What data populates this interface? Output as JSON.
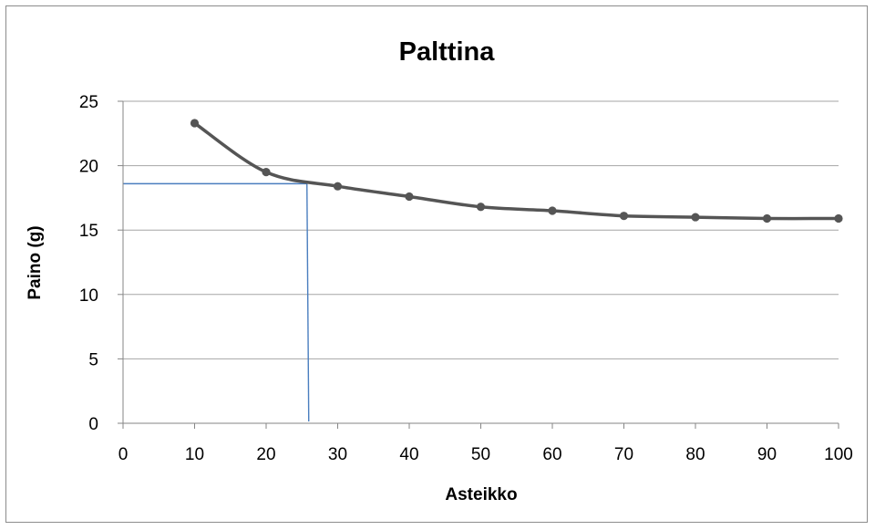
{
  "chart_data": {
    "type": "line",
    "title": "Palttina",
    "xlabel": "Asteikko",
    "ylabel": "Paino (g)",
    "xlim": [
      0,
      100
    ],
    "ylim": [
      0,
      25
    ],
    "x_ticks": [
      "0",
      "10",
      "20",
      "30",
      "40",
      "50",
      "60",
      "70",
      "80",
      "90",
      "100"
    ],
    "y_ticks": [
      "0",
      "5",
      "10",
      "15",
      "20",
      "25"
    ],
    "grid": "horizontal",
    "legend": "none",
    "series": [
      {
        "x": [
          10,
          20,
          30,
          40,
          50,
          60,
          70,
          80,
          90,
          100
        ],
        "y": [
          23.3,
          19.5,
          18.4,
          17.6,
          16.8,
          16.5,
          16.1,
          16.0,
          15.9,
          15.9
        ],
        "color": "#555555"
      }
    ],
    "annotation": {
      "x": 25.7,
      "y": 18.6,
      "color": "#4a7ebf"
    },
    "colors": {
      "grid": "#a6a6a6",
      "axis": "#868686"
    }
  }
}
